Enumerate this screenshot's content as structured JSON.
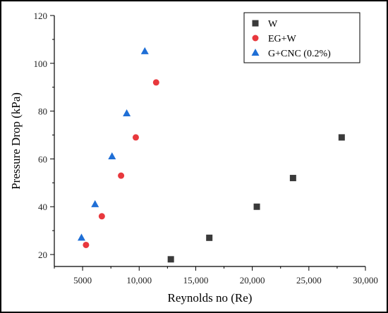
{
  "chart_data": {
    "type": "scatter",
    "title": "",
    "xlabel": "Reynolds no (Re)",
    "ylabel": "Pressure Drop (kPa)",
    "xlim": [
      2500,
      30000
    ],
    "ylim": [
      15,
      120
    ],
    "x_ticks": [
      5000,
      10000,
      15000,
      20000,
      25000,
      30000
    ],
    "x_tick_labels": [
      "5000",
      "10,000",
      "15,000",
      "20,000",
      "25,000",
      "30,000"
    ],
    "y_ticks": [
      20,
      40,
      60,
      80,
      100,
      120
    ],
    "y_tick_labels": [
      "20",
      "40",
      "60",
      "80",
      "100",
      "120"
    ],
    "grid": false,
    "legend_position": "top-right",
    "series": [
      {
        "name": "W",
        "marker": "square",
        "color": "#3a3a3a",
        "x": [
          12800,
          16200,
          20400,
          23600,
          27900
        ],
        "y": [
          18,
          27,
          40,
          52,
          69
        ]
      },
      {
        "name": "EG+W",
        "marker": "circle",
        "color": "#e8383d",
        "x": [
          5300,
          6700,
          8400,
          9700,
          11500
        ],
        "y": [
          24,
          36,
          53,
          69,
          92
        ]
      },
      {
        "name": "G+CNC (0.2%)",
        "marker": "triangle",
        "color": "#1f6fd6",
        "x": [
          4900,
          6100,
          7600,
          8900,
          10500
        ],
        "y": [
          27,
          41,
          61,
          79,
          105
        ]
      }
    ]
  }
}
